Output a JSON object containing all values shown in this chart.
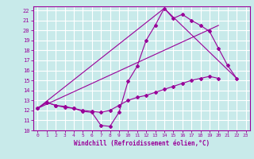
{
  "title": "",
  "xlabel": "Windchill (Refroidissement éolien,°C)",
  "bg_color": "#c8eaea",
  "grid_color": "#ffffff",
  "line_color": "#990099",
  "xlim": [
    -0.5,
    23.5
  ],
  "ylim": [
    10,
    22.4
  ],
  "xticks": [
    0,
    1,
    2,
    3,
    4,
    5,
    6,
    7,
    8,
    9,
    10,
    11,
    12,
    13,
    14,
    15,
    16,
    17,
    18,
    19,
    20,
    21,
    22,
    23
  ],
  "yticks": [
    10,
    11,
    12,
    13,
    14,
    15,
    16,
    17,
    18,
    19,
    20,
    21,
    22
  ],
  "line1_x": [
    0,
    1,
    2,
    3,
    4,
    5,
    6,
    7,
    8,
    9,
    10,
    11,
    12,
    13,
    14,
    15,
    16,
    17,
    18,
    19,
    20,
    21,
    22
  ],
  "line1_y": [
    12.2,
    12.8,
    12.5,
    12.4,
    12.2,
    11.9,
    11.8,
    10.5,
    10.4,
    11.8,
    14.9,
    16.4,
    19.0,
    20.5,
    22.2,
    21.2,
    21.6,
    21.0,
    20.5,
    19.9,
    18.2,
    16.5,
    15.2
  ],
  "line2_x": [
    0,
    1,
    2,
    3,
    4,
    5,
    6,
    7,
    8,
    9,
    10,
    11,
    12,
    13,
    14,
    15,
    16,
    17,
    18,
    19,
    20
  ],
  "line2_y": [
    12.2,
    12.8,
    12.5,
    12.3,
    12.2,
    12.0,
    11.9,
    11.8,
    12.0,
    12.5,
    13.0,
    13.3,
    13.5,
    13.8,
    14.1,
    14.4,
    14.7,
    15.0,
    15.2,
    15.4,
    15.2
  ],
  "line3_x": [
    0,
    14,
    22
  ],
  "line3_y": [
    12.2,
    22.2,
    15.2
  ],
  "line4_x": [
    0,
    20
  ],
  "line4_y": [
    12.2,
    20.5
  ]
}
